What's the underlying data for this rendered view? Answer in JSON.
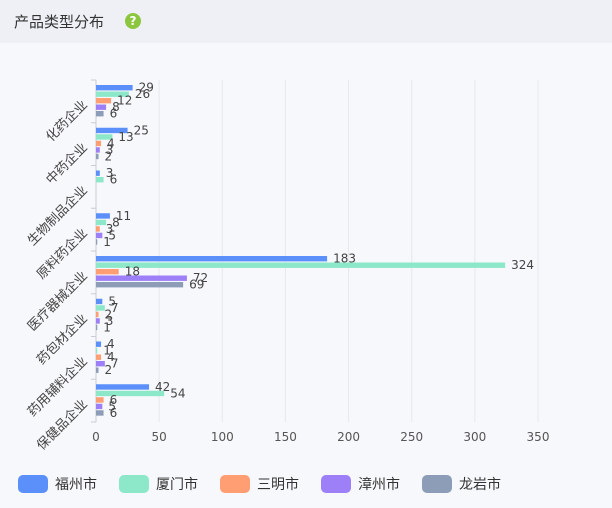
{
  "header": {
    "title": "产品类型分布",
    "help_icon": "?"
  },
  "chart_data": {
    "type": "bar",
    "orientation": "horizontal",
    "categories": [
      "化药企业",
      "中药企业",
      "生物制品企业",
      "原料药企业",
      "医疗器械企业",
      "药包材企业",
      "药用辅料企业",
      "保健品企业"
    ],
    "series": [
      {
        "name": "福州市",
        "color": "#5b8ff9",
        "values": [
          29,
          25,
          3,
          11,
          183,
          5,
          4,
          42
        ]
      },
      {
        "name": "厦门市",
        "color": "#8ce8c8",
        "values": [
          26,
          13,
          6,
          8,
          324,
          7,
          1,
          54
        ]
      },
      {
        "name": "三明市",
        "color": "#ff9d73",
        "values": [
          12,
          4,
          null,
          3,
          18,
          2,
          4,
          6
        ]
      },
      {
        "name": "漳州市",
        "color": "#9d7ff7",
        "values": [
          8,
          3,
          null,
          5,
          72,
          3,
          7,
          5
        ]
      },
      {
        "name": "龙岩市",
        "color": "#8e9db7",
        "values": [
          6,
          2,
          null,
          1,
          69,
          1,
          2,
          6
        ]
      }
    ],
    "xlim": [
      0,
      350
    ],
    "xticks": [
      0,
      50,
      100,
      150,
      200,
      250,
      300,
      350
    ],
    "grid": true,
    "legend_position": "bottom"
  }
}
